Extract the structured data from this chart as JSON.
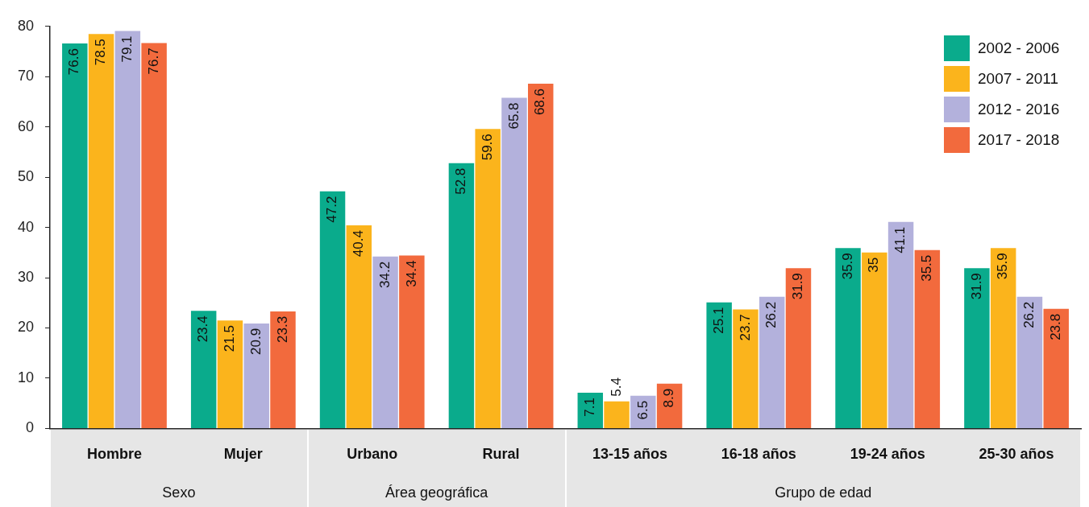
{
  "chart_data": {
    "type": "bar",
    "categories": [
      "Hombre",
      "Mujer",
      "Urbano",
      "Rural",
      "13-15 años",
      "16-18 años",
      "19-24 años",
      "25-30 años"
    ],
    "series": [
      {
        "name": "2002 - 2006",
        "color": "#0aab8c",
        "values": [
          76.6,
          23.4,
          47.2,
          52.8,
          7.1,
          25.1,
          35.9,
          31.9
        ]
      },
      {
        "name": "2007 - 2011",
        "color": "#fbb41c",
        "values": [
          78.5,
          21.5,
          40.4,
          59.6,
          5.4,
          23.7,
          35,
          35.9
        ]
      },
      {
        "name": "2012 - 2016",
        "color": "#b3b1dc",
        "values": [
          79.1,
          20.9,
          34.2,
          65.8,
          6.5,
          26.2,
          41.1,
          26.2
        ]
      },
      {
        "name": "2017 - 2018",
        "color": "#f26a3d",
        "values": [
          76.7,
          23.3,
          34.4,
          68.6,
          8.9,
          31.9,
          35.5,
          23.8
        ]
      }
    ],
    "annotations": [
      "Sexo",
      "Área geográfica",
      "Grupo de edad"
    ],
    "ylim": [
      0,
      80
    ],
    "yticks": [
      0,
      10,
      20,
      30,
      40,
      50,
      60,
      70,
      80
    ],
    "grid": false,
    "legend": "top right",
    "data_labels": true
  }
}
